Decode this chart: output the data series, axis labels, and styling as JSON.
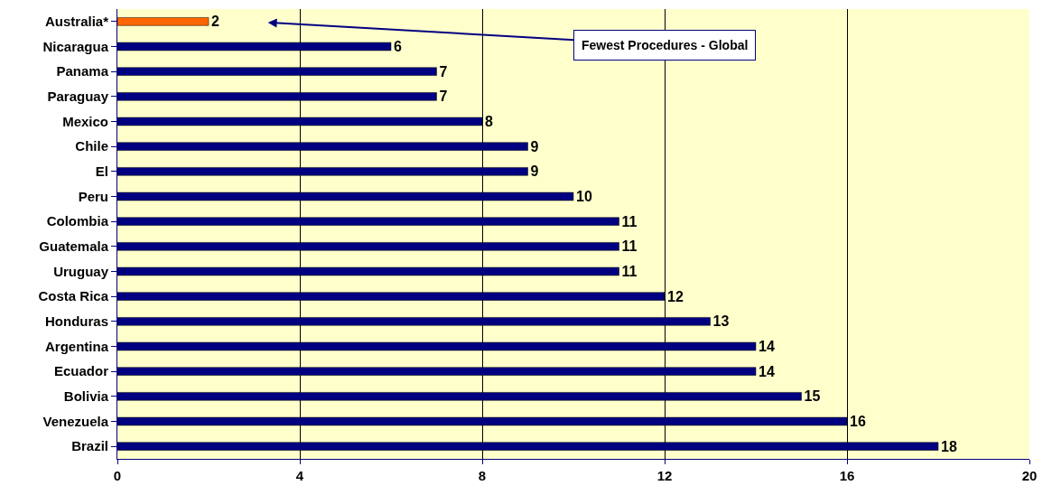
{
  "chart_data": {
    "type": "bar",
    "orientation": "horizontal",
    "categories": [
      "Australia*",
      "Nicaragua",
      "Panama",
      "Paraguay",
      "Mexico",
      "Chile",
      "El",
      "Peru",
      "Colombia",
      "Guatemala",
      "Uruguay",
      "Costa Rica",
      "Honduras",
      "Argentina",
      "Ecuador",
      "Bolivia",
      "Venezuela",
      "Brazil"
    ],
    "values": [
      2,
      6,
      7,
      7,
      8,
      9,
      9,
      10,
      11,
      11,
      11,
      12,
      13,
      14,
      14,
      15,
      16,
      18
    ],
    "colors": [
      "#ff6600",
      "#000080",
      "#000080",
      "#000080",
      "#000080",
      "#000080",
      "#000080",
      "#000080",
      "#000080",
      "#000080",
      "#000080",
      "#000080",
      "#000080",
      "#000080",
      "#000080",
      "#000080",
      "#000080",
      "#000080"
    ],
    "xlim": [
      0,
      20
    ],
    "xticks": [
      0,
      4,
      8,
      12,
      16,
      20
    ],
    "grid": "x",
    "data_labels": true,
    "annotations": [
      "Fewest Procedures - Global"
    ]
  }
}
